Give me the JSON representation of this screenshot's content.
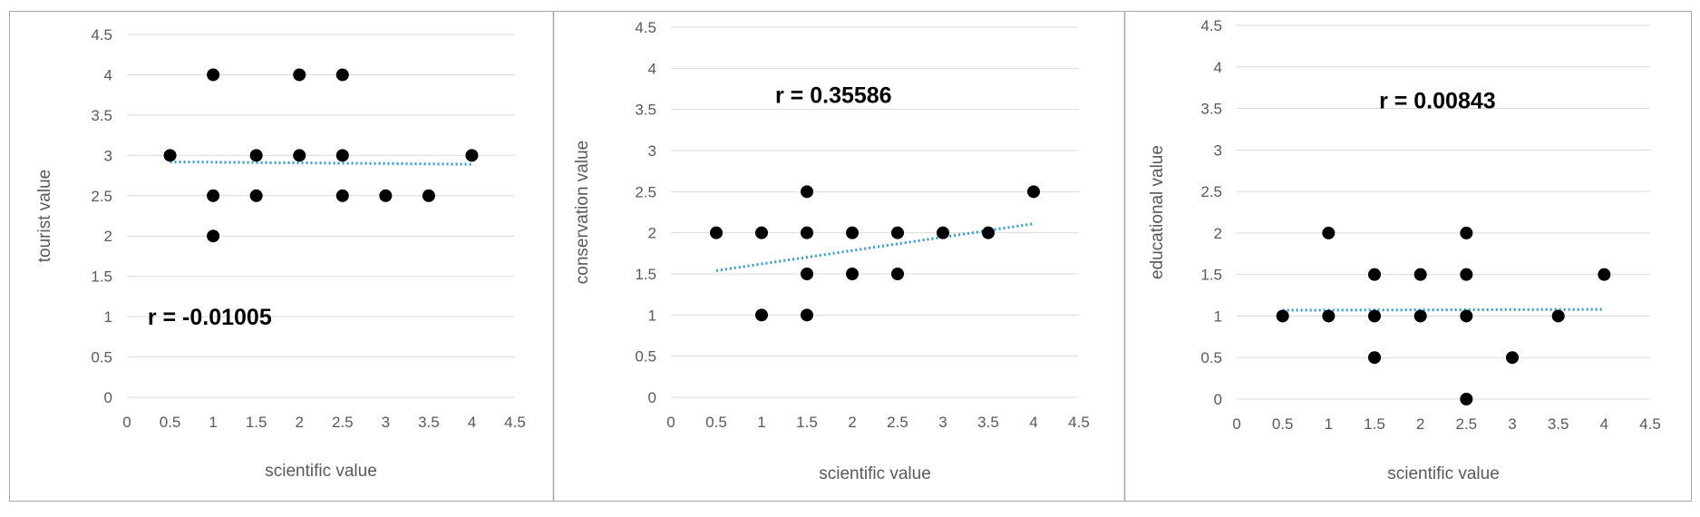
{
  "colors": {
    "point": "#000000",
    "trendline": "#2e9bd3",
    "grid": "#d9d9d9",
    "panel_border": "#a6a6a6",
    "tick_text": "#595959"
  },
  "chart_data": [
    {
      "type": "scatter",
      "title": "",
      "xlabel": "scientific value",
      "ylabel": "tourist value",
      "annotation": "r = -0.01005",
      "xlim": [
        0,
        4.5
      ],
      "ylim": [
        0,
        4.5
      ],
      "xticks": [
        "0",
        "0.5",
        "1",
        "1.5",
        "2",
        "2.5",
        "3",
        "3.5",
        "4",
        "4.5"
      ],
      "yticks": [
        "0",
        "0.5",
        "1",
        "1.5",
        "2",
        "2.5",
        "3",
        "3.5",
        "4",
        "4.5"
      ],
      "grid": "horizontal",
      "trendline": {
        "style": "dotted",
        "x": [
          0.5,
          4
        ],
        "y": [
          2.92,
          2.89
        ]
      },
      "points": [
        {
          "x": 0.5,
          "y": 3
        },
        {
          "x": 1,
          "y": 4
        },
        {
          "x": 1,
          "y": 2.5
        },
        {
          "x": 1,
          "y": 2
        },
        {
          "x": 1.5,
          "y": 3
        },
        {
          "x": 1.5,
          "y": 2.5
        },
        {
          "x": 2,
          "y": 4
        },
        {
          "x": 2,
          "y": 3
        },
        {
          "x": 2.5,
          "y": 4
        },
        {
          "x": 2.5,
          "y": 3
        },
        {
          "x": 2.5,
          "y": 2.5
        },
        {
          "x": 3,
          "y": 2.5
        },
        {
          "x": 3.5,
          "y": 2.5
        },
        {
          "x": 4,
          "y": 3
        }
      ]
    },
    {
      "type": "scatter",
      "title": "",
      "xlabel": "scientific value",
      "ylabel": "conservation value",
      "annotation": "r = 0.35586",
      "xlim": [
        0,
        4.5
      ],
      "ylim": [
        0,
        4.5
      ],
      "xticks": [
        "0",
        "0.5",
        "1",
        "1.5",
        "2",
        "2.5",
        "3",
        "3.5",
        "4",
        "4.5"
      ],
      "yticks": [
        "0",
        "0.5",
        "1",
        "1.5",
        "2",
        "2.5",
        "3",
        "3.5",
        "4",
        "4.5"
      ],
      "grid": "horizontal",
      "trendline": {
        "style": "dotted",
        "x": [
          0.5,
          4
        ],
        "y": [
          1.54,
          2.11
        ]
      },
      "points": [
        {
          "x": 0.5,
          "y": 2
        },
        {
          "x": 1,
          "y": 2
        },
        {
          "x": 1,
          "y": 1
        },
        {
          "x": 1.5,
          "y": 2.5
        },
        {
          "x": 1.5,
          "y": 2
        },
        {
          "x": 1.5,
          "y": 1.5
        },
        {
          "x": 1.5,
          "y": 1
        },
        {
          "x": 2,
          "y": 2
        },
        {
          "x": 2,
          "y": 1.5
        },
        {
          "x": 2.5,
          "y": 2
        },
        {
          "x": 2.5,
          "y": 1.5
        },
        {
          "x": 3,
          "y": 2
        },
        {
          "x": 3.5,
          "y": 2
        },
        {
          "x": 4,
          "y": 2.5
        }
      ]
    },
    {
      "type": "scatter",
      "title": "",
      "xlabel": "scientific value",
      "ylabel": "educational value",
      "annotation": "r = 0.00843",
      "xlim": [
        0,
        4.5
      ],
      "ylim": [
        0,
        4.5
      ],
      "xticks": [
        "0",
        "0.5",
        "1",
        "1.5",
        "2",
        "2.5",
        "3",
        "3.5",
        "4",
        "4.5"
      ],
      "yticks": [
        "0",
        "0.5",
        "1",
        "1.5",
        "2",
        "2.5",
        "3",
        "3.5",
        "4",
        "4.5"
      ],
      "grid": "horizontal",
      "trendline": {
        "style": "dotted",
        "x": [
          0.5,
          4
        ],
        "y": [
          1.07,
          1.08
        ]
      },
      "points": [
        {
          "x": 0.5,
          "y": 1
        },
        {
          "x": 1,
          "y": 2
        },
        {
          "x": 1,
          "y": 1
        },
        {
          "x": 1.5,
          "y": 1.5
        },
        {
          "x": 1.5,
          "y": 1
        },
        {
          "x": 1.5,
          "y": 0.5
        },
        {
          "x": 2,
          "y": 1.5
        },
        {
          "x": 2,
          "y": 1
        },
        {
          "x": 2.5,
          "y": 2
        },
        {
          "x": 2.5,
          "y": 1.5
        },
        {
          "x": 2.5,
          "y": 1
        },
        {
          "x": 2.5,
          "y": 0
        },
        {
          "x": 3,
          "y": 0.5
        },
        {
          "x": 3.5,
          "y": 1
        },
        {
          "x": 4,
          "y": 1.5
        }
      ]
    }
  ]
}
